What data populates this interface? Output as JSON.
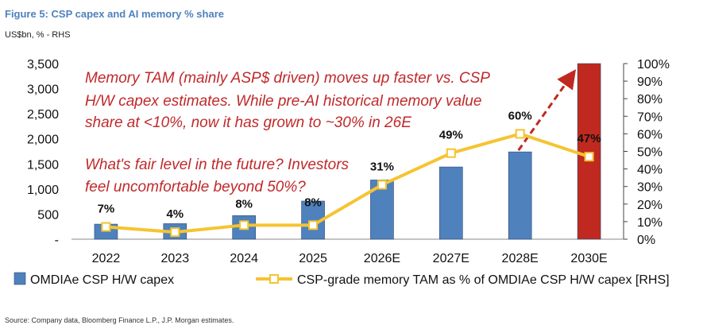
{
  "header": {
    "title": "Figure 5: CSP capex and AI memory % share",
    "units": "US$bn, % - RHS"
  },
  "source": "Source: Company data, Bloomberg Finance L.P., J.P. Morgan estimates.",
  "chart_data": {
    "type": "bar",
    "categories": [
      "2022",
      "2023",
      "2024",
      "2025",
      "2026E",
      "2027E",
      "2028E",
      "2030E"
    ],
    "series": [
      {
        "name": "OMDIAe CSP H/W capex",
        "type": "bar",
        "axis": "left",
        "values": [
          300,
          310,
          470,
          760,
          1180,
          1440,
          1740,
          3500
        ],
        "colors": [
          "#4f81bd",
          "#4f81bd",
          "#4f81bd",
          "#4f81bd",
          "#4f81bd",
          "#4f81bd",
          "#4f81bd",
          "#c0291f"
        ]
      },
      {
        "name": "CSP-grade memory TAM as % of OMDIAe CSP H/W capex [RHS]",
        "type": "line",
        "axis": "right",
        "values": [
          7,
          4,
          8,
          8,
          31,
          49,
          60,
          47
        ],
        "labels": [
          "7%",
          "4%",
          "8%",
          "8%",
          "31%",
          "49%",
          "60%",
          "47%"
        ],
        "color": "#f5c431"
      }
    ],
    "left_axis": {
      "ylim": [
        0,
        3500
      ],
      "ticks": [
        0,
        500,
        1000,
        1500,
        2000,
        2500,
        3000,
        3500
      ],
      "tick_labels": [
        "-",
        "500",
        "1,000",
        "1,500",
        "2,000",
        "2,500",
        "3,000",
        "3,500"
      ]
    },
    "right_axis": {
      "ylim": [
        0,
        100
      ],
      "ticks": [
        0,
        10,
        20,
        30,
        40,
        50,
        60,
        70,
        80,
        90,
        100
      ],
      "tick_labels": [
        "0%",
        "10%",
        "20%",
        "30%",
        "40%",
        "50%",
        "60%",
        "70%",
        "80%",
        "90%",
        "100%"
      ]
    },
    "annotations": [
      "Memory TAM (mainly ASP$ driven) moves up faster vs. CSP",
      "H/W capex estimates. While pre-AI historical memory value",
      "share at <10%, now it has grown to ~30% in 26E",
      "What's fair level in the future? Investors",
      "feel uncomfortable beyond 50%?"
    ],
    "trend_arrow": {
      "from_category": "2028E",
      "to_category": "2030E",
      "color": "#c0291f",
      "style": "dashed"
    },
    "grid": false,
    "legend_position": "bottom"
  }
}
